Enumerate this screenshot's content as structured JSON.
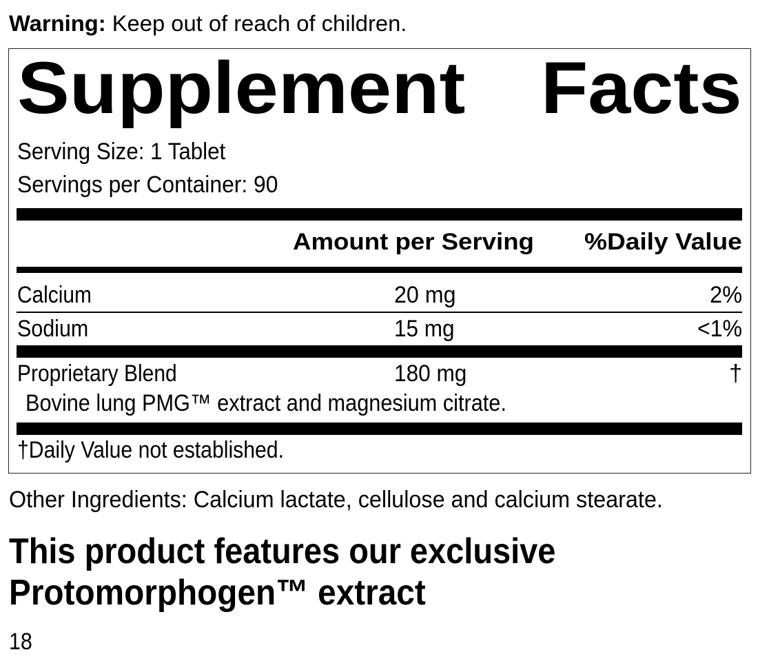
{
  "warning": {
    "label": "Warning:",
    "text": " Keep out of reach of children."
  },
  "facts": {
    "title_word1": "Supplement",
    "title_word2": "Facts",
    "serving_size": "Serving Size: 1 Tablet",
    "servings_per_container": "Servings per Container: 90",
    "header": {
      "amount": "Amount per Serving",
      "daily_value": "%Daily Value"
    },
    "rows": [
      {
        "name": "Calcium",
        "amount": "20 mg",
        "dv": "2%"
      },
      {
        "name": "Sodium",
        "amount": "15 mg",
        "dv": "<1%"
      },
      {
        "name": "Proprietary Blend",
        "amount": "180 mg",
        "dv": "†"
      }
    ],
    "blend_detail": "Bovine lung PMG™ extract and magnesium citrate.",
    "footnote": "†Daily Value not established."
  },
  "other_ingredients": "Other Ingredients: Calcium lactate, cellulose and calcium stearate.",
  "feature": {
    "line1": "This product features our exclusive",
    "line2": "Protomorphogen™ extract"
  },
  "page_number": "18"
}
